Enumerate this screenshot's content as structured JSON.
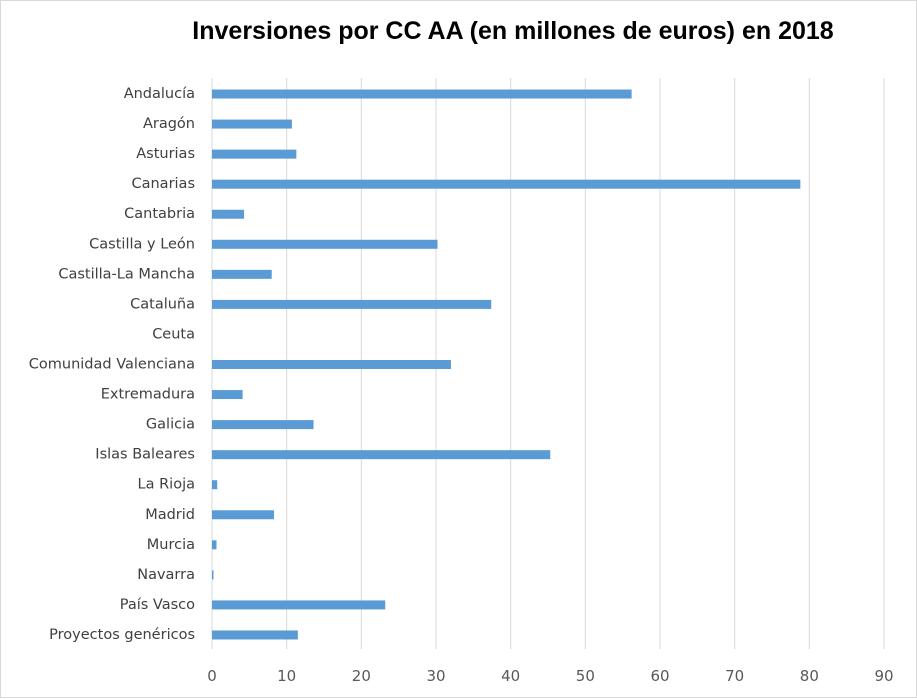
{
  "chart_data": {
    "type": "bar",
    "orientation": "horizontal",
    "title": "Inversiones por CC AA (en millones de euros) en 2018",
    "categories": [
      "Andalucía",
      "Aragón",
      "Asturias",
      "Canarias",
      "Cantabria",
      "Castilla y León",
      "Castilla-La Mancha",
      "Cataluña",
      "Ceuta",
      "Comunidad Valenciana",
      "Extremadura",
      "Galicia",
      "Islas Baleares",
      "La Rioja",
      "Madrid",
      "Murcia",
      "Navarra",
      "País Vasco",
      "Proyectos genéricos"
    ],
    "values": [
      56.2,
      10.7,
      11.3,
      78.8,
      4.3,
      30.2,
      8.0,
      37.4,
      0,
      32.0,
      4.1,
      13.6,
      45.3,
      0.7,
      8.3,
      0.6,
      0.2,
      23.2,
      11.5
    ],
    "xlim": [
      0,
      90
    ],
    "xticks": [
      "0",
      "10",
      "20",
      "30",
      "40",
      "50",
      "60",
      "70",
      "80",
      "90"
    ],
    "grid": "vertical",
    "legend": "none",
    "bar_color": "#5b9bd5",
    "grid_color": "#d9d9d9"
  }
}
